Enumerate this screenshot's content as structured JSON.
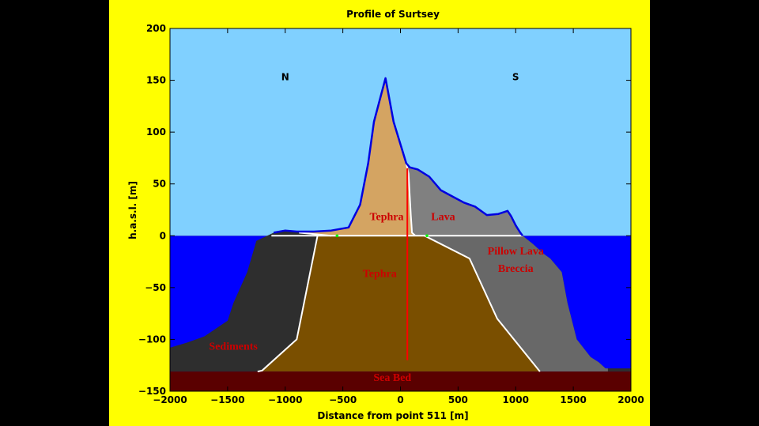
{
  "chart_data": {
    "type": "area",
    "title": "Profile of Surtsey",
    "xlabel": "Distance from point 511 [m]",
    "ylabel": "h.a.s.l. [m]",
    "xlim": [
      -2000,
      2000
    ],
    "ylim": [
      -150,
      200
    ],
    "xticks": [
      -2000,
      -1500,
      -1000,
      -500,
      0,
      500,
      1000,
      1500,
      2000
    ],
    "yticks": [
      -150,
      -100,
      -50,
      0,
      50,
      100,
      150,
      200
    ],
    "xtick_labels": [
      "−2000",
      "−1500",
      "−1000",
      "−500",
      "0",
      "500",
      "1000",
      "1500",
      "2000"
    ],
    "ytick_labels": [
      "−150",
      "−100",
      "−50",
      "0",
      "50",
      "100",
      "150",
      "200"
    ],
    "grid": false,
    "colors": {
      "sky": "#80d0ff",
      "sea": "#0000ff",
      "sea_bed": "#5a0000",
      "sediments": "#2e2e2e",
      "tephra_below": "#7a4f00",
      "tephra_above": "#d4a462",
      "lava": "#808080",
      "pillow_lava": "#686868",
      "outline": "#0000e0",
      "boundary": "#ffffff",
      "core_line": "#ff0000",
      "region_text": "#cc0000"
    },
    "sea_level": 0,
    "sea_bed_level": -131,
    "surface_profile": [
      [
        -2000,
        -108
      ],
      [
        -1850,
        -103
      ],
      [
        -1700,
        -97
      ],
      [
        -1500,
        -82
      ],
      [
        -1450,
        -65
      ],
      [
        -1330,
        -35
      ],
      [
        -1250,
        -5
      ],
      [
        -1100,
        3
      ],
      [
        -1000,
        5
      ],
      [
        -900,
        4
      ],
      [
        -750,
        4
      ],
      [
        -600,
        5
      ],
      [
        -450,
        8
      ],
      [
        -350,
        30
      ],
      [
        -280,
        70
      ],
      [
        -230,
        110
      ],
      [
        -130,
        152
      ],
      [
        -60,
        110
      ],
      [
        50,
        70
      ],
      [
        80,
        66
      ],
      [
        150,
        64
      ],
      [
        250,
        57
      ],
      [
        350,
        44
      ],
      [
        450,
        38
      ],
      [
        550,
        32
      ],
      [
        650,
        28
      ],
      [
        750,
        20
      ],
      [
        850,
        21
      ],
      [
        930,
        24
      ],
      [
        960,
        19
      ],
      [
        1000,
        10
      ],
      [
        1040,
        3
      ],
      [
        1060,
        0
      ],
      [
        1150,
        -8
      ],
      [
        1250,
        -18
      ],
      [
        1300,
        -22
      ],
      [
        1400,
        -35
      ],
      [
        1450,
        -65
      ],
      [
        1530,
        -100
      ],
      [
        1650,
        -117
      ],
      [
        1720,
        -122
      ],
      [
        1780,
        -128
      ],
      [
        1820,
        -128
      ],
      [
        2000,
        -128
      ]
    ],
    "boundaries": {
      "sea_level_line": [
        [
          -1120,
          0
        ],
        [
          1060,
          0
        ]
      ],
      "sediment_left": [
        [
          -1240,
          -131
        ],
        [
          -1200,
          -130
        ],
        [
          -900,
          -100
        ],
        [
          -720,
          0
        ]
      ],
      "tephra_edge_above": [
        [
          -880,
          3
        ],
        [
          -600,
          0
        ]
      ],
      "tephra_lava_contact": [
        [
          50,
          70
        ],
        [
          70,
          60
        ],
        [
          90,
          20
        ],
        [
          100,
          3
        ],
        [
          130,
          0
        ]
      ],
      "pillow_inner": [
        [
          210,
          0
        ],
        [
          600,
          -22
        ],
        [
          840,
          -80
        ],
        [
          1210,
          -131
        ]
      ]
    },
    "core_line": [
      [
        60,
        -120
      ],
      [
        60,
        65
      ]
    ],
    "markers": [
      [
        -550,
        0
      ],
      [
        230,
        0
      ]
    ],
    "annotations": [
      {
        "text": "N",
        "x": -1000,
        "y": 150
      },
      {
        "text": "S",
        "x": 1000,
        "y": 150
      },
      {
        "text": "Tephra",
        "x": -120,
        "y": 15
      },
      {
        "text": "Lava",
        "x": 370,
        "y": 15
      },
      {
        "text": "Pillow Lava",
        "x": 1000,
        "y": -18
      },
      {
        "text": "Breccia",
        "x": 1000,
        "y": -35
      },
      {
        "text": "Tephra",
        "x": -180,
        "y": -40
      },
      {
        "text": "Sediments",
        "x": -1450,
        "y": -110
      },
      {
        "text": "Sea Bed",
        "x": -70,
        "y": -140
      }
    ]
  }
}
